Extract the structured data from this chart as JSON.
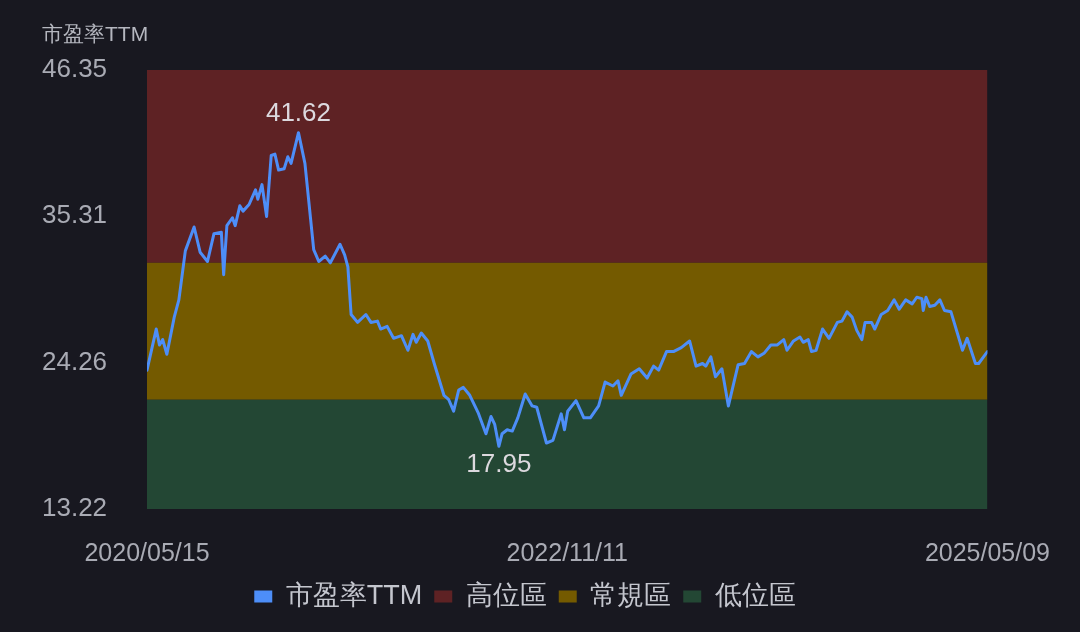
{
  "chart_data": {
    "type": "line",
    "ylabel": "市盈率TTM",
    "x": [
      "2020-05-15",
      "2020-06-04",
      "2020-06-11",
      "2020-06-18",
      "2020-06-27",
      "2020-07-13",
      "2020-07-23",
      "2020-08-06",
      "2020-08-25",
      "2020-09-07",
      "2020-09-23",
      "2020-10-07",
      "2020-10-23",
      "2020-10-28",
      "2020-11-04",
      "2020-11-16",
      "2020-11-22",
      "2020-12-02",
      "2020-12-09",
      "2020-12-22",
      "2021-01-05",
      "2021-01-10",
      "2021-01-19",
      "2021-01-29",
      "2021-02-08",
      "2021-02-16",
      "2021-02-24",
      "2021-03-08",
      "2021-03-16",
      "2021-03-23",
      "2021-04-08",
      "2021-04-22",
      "2021-05-04",
      "2021-05-11",
      "2021-05-22",
      "2021-06-05",
      "2021-06-16",
      "2021-07-07",
      "2021-07-17",
      "2021-07-24",
      "2021-07-31",
      "2021-08-14",
      "2021-09-01",
      "2021-09-12",
      "2021-09-26",
      "2021-10-03",
      "2021-10-17",
      "2021-10-31",
      "2021-11-17",
      "2021-12-01",
      "2021-12-12",
      "2021-12-19",
      "2021-12-30",
      "2022-01-13",
      "2022-01-27",
      "2022-02-17",
      "2022-02-27",
      "2022-03-10",
      "2022-03-21",
      "2022-03-31",
      "2022-04-14",
      "2022-05-02",
      "2022-05-19",
      "2022-05-30",
      "2022-06-07",
      "2022-06-16",
      "2022-06-23",
      "2022-07-04",
      "2022-07-15",
      "2022-07-27",
      "2022-08-12",
      "2022-08-27",
      "2022-09-06",
      "2022-09-27",
      "2022-10-11",
      "2022-10-29",
      "2022-11-05",
      "2022-11-12",
      "2022-11-30",
      "2022-12-17",
      "2022-12-31",
      "2023-01-18",
      "2023-02-01",
      "2023-02-18",
      "2023-03-01",
      "2023-03-08",
      "2023-03-29",
      "2023-04-16",
      "2023-05-03",
      "2023-05-17",
      "2023-05-28",
      "2023-06-14",
      "2023-06-29",
      "2023-07-16",
      "2023-08-03",
      "2023-08-17",
      "2023-08-31",
      "2023-09-07",
      "2023-09-18",
      "2023-09-28",
      "2023-10-12",
      "2023-10-26",
      "2023-11-16",
      "2023-11-30",
      "2023-12-15",
      "2023-12-29",
      "2024-01-12",
      "2024-01-26",
      "2024-02-09",
      "2024-02-23",
      "2024-03-01",
      "2024-03-15",
      "2024-03-29",
      "2024-04-05",
      "2024-04-16",
      "2024-04-23",
      "2024-05-03",
      "2024-05-17",
      "2024-05-31",
      "2024-06-18",
      "2024-06-28",
      "2024-07-09",
      "2024-07-20",
      "2024-07-30",
      "2024-08-10",
      "2024-08-17",
      "2024-08-31",
      "2024-09-07",
      "2024-09-21",
      "2024-10-05",
      "2024-10-19",
      "2024-10-30",
      "2024-11-13",
      "2024-11-27",
      "2024-12-07",
      "2024-12-18",
      "2024-12-21",
      "2024-12-27",
      "2025-01-04",
      "2025-01-15",
      "2025-01-26",
      "2025-02-05",
      "2025-02-19",
      "2025-03-16",
      "2025-03-26",
      "2025-04-13",
      "2025-04-20",
      "2025-05-09"
    ],
    "series": [
      {
        "name": "市盈率TTM",
        "color": "#4d8ef8",
        "values": [
          23.7,
          26.8,
          25.6,
          26.0,
          24.9,
          27.7,
          29.0,
          32.7,
          34.5,
          32.6,
          31.9,
          34.0,
          34.1,
          30.9,
          34.6,
          35.2,
          34.6,
          36.1,
          35.7,
          36.2,
          37.3,
          36.6,
          37.7,
          35.3,
          39.9,
          40.0,
          38.8,
          38.9,
          39.8,
          39.3,
          41.62,
          39.3,
          35.2,
          32.8,
          31.9,
          32.3,
          31.8,
          33.2,
          32.4,
          31.5,
          27.9,
          27.3,
          27.9,
          27.3,
          27.4,
          26.8,
          27.0,
          26.1,
          26.3,
          25.2,
          26.4,
          25.8,
          26.5,
          25.9,
          24.2,
          21.8,
          21.5,
          20.6,
          22.2,
          22.4,
          21.8,
          20.5,
          18.9,
          20.2,
          19.6,
          17.95,
          18.9,
          19.2,
          19.1,
          20.1,
          21.9,
          21.0,
          20.9,
          18.2,
          18.4,
          20.4,
          19.2,
          20.6,
          21.4,
          20.1,
          20.1,
          21.0,
          22.8,
          22.5,
          22.9,
          21.8,
          23.4,
          23.8,
          23.1,
          24.0,
          23.7,
          25.1,
          25.1,
          25.4,
          25.9,
          24.0,
          24.2,
          24.0,
          24.7,
          23.2,
          23.8,
          21.0,
          24.1,
          24.2,
          25.1,
          24.7,
          25.0,
          25.6,
          25.6,
          26.0,
          25.2,
          25.9,
          26.2,
          25.8,
          26.0,
          25.1,
          25.2,
          26.8,
          26.1,
          27.3,
          27.4,
          28.1,
          27.7,
          26.7,
          26.0,
          27.3,
          27.3,
          26.8,
          27.9,
          28.2,
          29.0,
          28.3,
          29.0,
          28.7,
          29.2,
          29.1,
          28.2,
          29.2,
          28.5,
          28.6,
          29.0,
          28.2,
          28.1,
          25.2,
          26.1,
          24.2,
          24.2,
          25.1
        ]
      }
    ],
    "xlim": [
      "2020-05-15",
      "2025-05-09"
    ],
    "xticks": [
      {
        "value": "2020-05-15",
        "label": "2020/05/15"
      },
      {
        "value": "2022-11-11",
        "label": "2022/11/11"
      },
      {
        "value": "2025-05-09",
        "label": "2025/05/09"
      }
    ],
    "ylim": [
      13.22,
      46.35
    ],
    "yticks": [
      13.22,
      24.26,
      35.31,
      46.35
    ],
    "bands": [
      {
        "axis": "y",
        "from": 31.8,
        "to": 46.35,
        "label": "高位區",
        "color": "#5e2224"
      },
      {
        "axis": "y",
        "from": 21.46,
        "to": 31.8,
        "label": "常規區",
        "color": "#745a00"
      },
      {
        "axis": "y",
        "from": 13.22,
        "to": 21.46,
        "label": "低位區",
        "color": "#234734"
      }
    ],
    "annotations": [
      {
        "text": "41.62",
        "x": "2021-04-08",
        "y": 41.62
      },
      {
        "text": "17.95",
        "x": "2022-06-16",
        "y": 17.95
      }
    ],
    "marker": "none",
    "legend": "bottom"
  }
}
